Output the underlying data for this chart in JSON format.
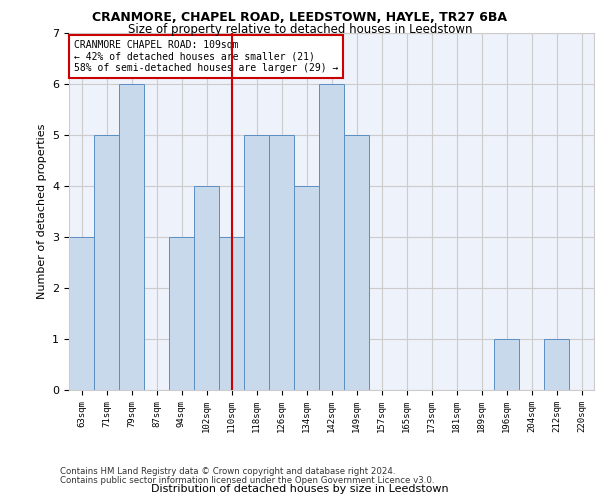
{
  "title1": "CRANMORE, CHAPEL ROAD, LEEDSTOWN, HAYLE, TR27 6BA",
  "title2": "Size of property relative to detached houses in Leedstown",
  "xlabel": "Distribution of detached houses by size in Leedstown",
  "ylabel": "Number of detached properties",
  "footer1": "Contains HM Land Registry data © Crown copyright and database right 2024.",
  "footer2": "Contains public sector information licensed under the Open Government Licence v3.0.",
  "annotation_line1": "CRANMORE CHAPEL ROAD: 109sqm",
  "annotation_line2": "← 42% of detached houses are smaller (21)",
  "annotation_line3": "58% of semi-detached houses are larger (29) →",
  "bar_color": "#c9d9ec",
  "bar_edge_color": "#5b8ec4",
  "vline_color": "#cc0000",
  "annotation_box_edge": "#cc0000",
  "grid_color": "#cccccc",
  "ax_background": "#eef2fa",
  "background_color": "#ffffff",
  "tick_labels": [
    "63sqm",
    "71sqm",
    "79sqm",
    "87sqm",
    "94sqm",
    "102sqm",
    "110sqm",
    "118sqm",
    "126sqm",
    "134sqm",
    "142sqm",
    "149sqm",
    "157sqm",
    "165sqm",
    "173sqm",
    "181sqm",
    "189sqm",
    "196sqm",
    "204sqm",
    "212sqm",
    "220sqm"
  ],
  "bar_values": [
    3,
    5,
    6,
    0,
    3,
    4,
    3,
    5,
    5,
    4,
    6,
    5,
    0,
    0,
    0,
    0,
    0,
    1,
    0,
    1,
    0
  ],
  "ylim": [
    0,
    7
  ],
  "yticks": [
    0,
    1,
    2,
    3,
    4,
    5,
    6,
    7
  ],
  "vline_x_index": 6
}
